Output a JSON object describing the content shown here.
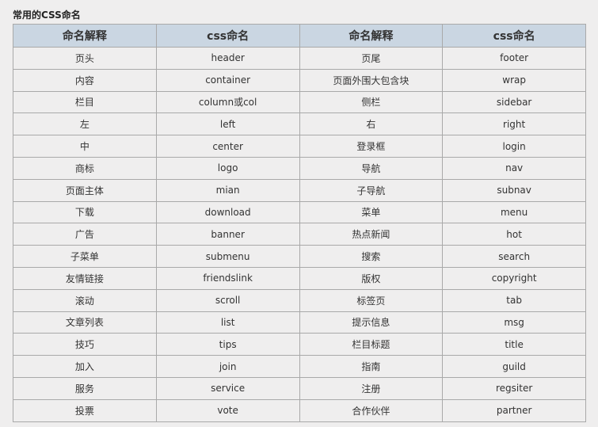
{
  "title": "常用的CSS命名",
  "headers": [
    "命名解释",
    "css命名",
    "命名解释",
    "css命名"
  ],
  "rows": [
    [
      "页头",
      "header",
      "页尾",
      "footer"
    ],
    [
      "内容",
      "container",
      "页面外围大包含块",
      "wrap"
    ],
    [
      "栏目",
      "column或col",
      "侧栏",
      "sidebar"
    ],
    [
      "左",
      "left",
      "右",
      "right"
    ],
    [
      "中",
      "center",
      "登录框",
      "login"
    ],
    [
      "商标",
      "logo",
      "导航",
      "nav"
    ],
    [
      "页面主体",
      "mian",
      "子导航",
      "subnav"
    ],
    [
      "下载",
      "download",
      "菜单",
      "menu"
    ],
    [
      "广告",
      "banner",
      "热点新闻",
      "hot"
    ],
    [
      "子菜单",
      "submenu",
      "搜索",
      "search"
    ],
    [
      "友情链接",
      "friendslink",
      "版权",
      "copyright"
    ],
    [
      "滚动",
      "scroll",
      "标签页",
      "tab"
    ],
    [
      "文章列表",
      "list",
      "提示信息",
      "msg"
    ],
    [
      "技巧",
      "tips",
      "栏目标题",
      "title"
    ],
    [
      "加入",
      "join",
      "指南",
      "guild"
    ],
    [
      "服务",
      "service",
      "注册",
      "regsiter"
    ],
    [
      "投票",
      "vote",
      "合作伙伴",
      "partner"
    ]
  ]
}
